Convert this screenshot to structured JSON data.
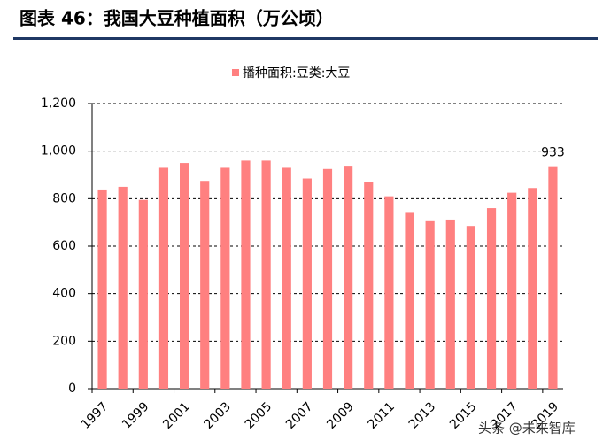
{
  "chart_data": {
    "type": "bar",
    "title": "图表 46：我国大豆种植面积（万公顷）",
    "legend_label": "播种面积:豆类:大豆",
    "watermark": "头条 @未来智库",
    "categories": [
      "1997",
      null,
      "1999",
      null,
      "2001",
      null,
      "2003",
      null,
      "2005",
      null,
      "2007",
      null,
      "2009",
      null,
      "2011",
      null,
      "2013",
      null,
      "2015",
      null,
      "2017",
      null,
      "2019"
    ],
    "series": [
      {
        "name": "播种面积:豆类:大豆",
        "color": "#ff8080",
        "values": [
          835,
          850,
          795,
          930,
          950,
          875,
          930,
          960,
          960,
          930,
          885,
          925,
          935,
          870,
          810,
          740,
          705,
          712,
          685,
          760,
          825,
          845,
          933
        ]
      }
    ],
    "data_label_last": true,
    "ylim": [
      0,
      1200
    ],
    "yticks": [
      0,
      200,
      400,
      600,
      800,
      {
        "value": 1000,
        "label": "1,000"
      },
      {
        "value": 1200,
        "label": "1,200"
      }
    ],
    "grid": true
  }
}
